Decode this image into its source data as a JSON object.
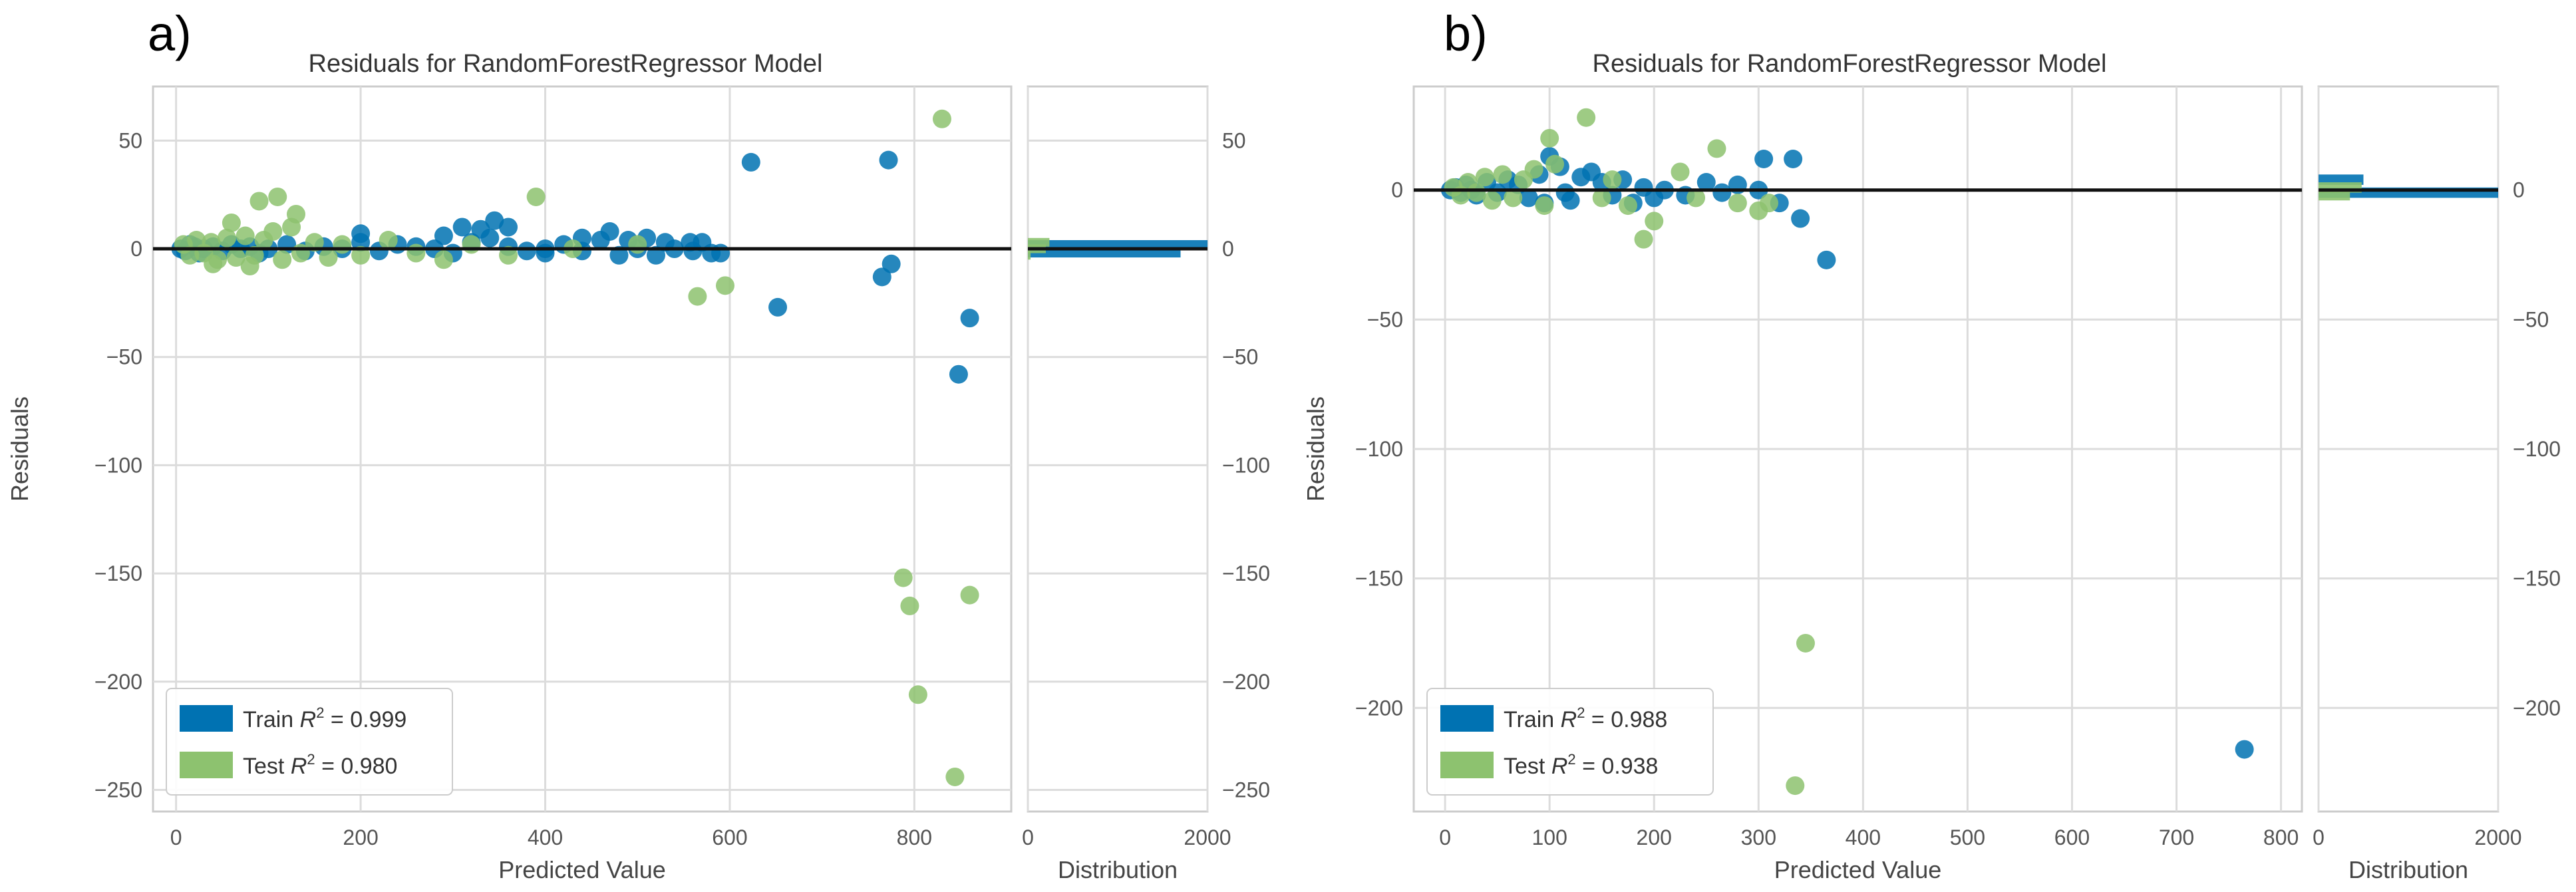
{
  "panels": [
    {
      "label": "a)",
      "chart_data": {
        "type": "scatter",
        "title": "Residuals for RandomForestRegressor Model",
        "xlabel": "Predicted Value",
        "ylabel": "Residuals",
        "xlim": [
          -25,
          905
        ],
        "ylim": [
          -260,
          75
        ],
        "xticks": [
          0,
          200,
          400,
          600,
          800
        ],
        "yticks": [
          50,
          0,
          -50,
          -100,
          -150,
          -200,
          -250
        ],
        "grid": true,
        "legend_position": "lower-left",
        "colors": {
          "train": "#0072b2",
          "test": "#8dc26f"
        },
        "series": [
          {
            "name": "Train R² = 0.999",
            "legend_prefix": "Train",
            "r2": "0.999",
            "color": "#0072b2",
            "points": [
              [
                5,
                0
              ],
              [
                10,
                -1
              ],
              [
                15,
                2
              ],
              [
                20,
                1
              ],
              [
                25,
                -2
              ],
              [
                30,
                0
              ],
              [
                40,
                1
              ],
              [
                50,
                -1
              ],
              [
                60,
                2
              ],
              [
                70,
                0
              ],
              [
                80,
                1
              ],
              [
                90,
                -2
              ],
              [
                100,
                0
              ],
              [
                120,
                2
              ],
              [
                140,
                -1
              ],
              [
                160,
                1
              ],
              [
                180,
                0
              ],
              [
                200,
                3
              ],
              [
                220,
                -1
              ],
              [
                240,
                2
              ],
              [
                260,
                1
              ],
              [
                280,
                0
              ],
              [
                300,
                -2
              ],
              [
                320,
                3
              ],
              [
                340,
                5
              ],
              [
                360,
                1
              ],
              [
                380,
                -1
              ],
              [
                400,
                0
              ],
              [
                420,
                2
              ],
              [
                440,
                -1
              ],
              [
                460,
                4
              ],
              [
                480,
                -3
              ],
              [
                500,
                0
              ],
              [
                510,
                5
              ],
              [
                520,
                -3
              ],
              [
                540,
                0
              ],
              [
                560,
                -1
              ],
              [
                570,
                3
              ],
              [
                580,
                -2
              ],
              [
                200,
                7
              ],
              [
                290,
                6
              ],
              [
                310,
                10
              ],
              [
                345,
                13
              ],
              [
                360,
                10
              ],
              [
                330,
                9
              ],
              [
                400,
                -2
              ],
              [
                440,
                5
              ],
              [
                470,
                8
              ],
              [
                490,
                4
              ],
              [
                530,
                3
              ],
              [
                557,
                3
              ],
              [
                623,
                40
              ],
              [
                652,
                -27
              ],
              [
                772,
                41
              ],
              [
                765,
                -13
              ],
              [
                775,
                -7
              ],
              [
                860,
                -32
              ],
              [
                848,
                -58
              ],
              [
                590,
                -2
              ]
            ]
          },
          {
            "name": "Test R² = 0.980",
            "legend_prefix": "Test",
            "r2": "0.980",
            "color": "#8dc26f",
            "points": [
              [
                8,
                2
              ],
              [
                15,
                -3
              ],
              [
                22,
                4
              ],
              [
                30,
                -2
              ],
              [
                38,
                3
              ],
              [
                45,
                -5
              ],
              [
                55,
                5
              ],
              [
                65,
                -4
              ],
              [
                75,
                6
              ],
              [
                85,
                -3
              ],
              [
                95,
                4
              ],
              [
                105,
                8
              ],
              [
                115,
                -5
              ],
              [
                125,
                10
              ],
              [
                135,
                -2
              ],
              [
                150,
                3
              ],
              [
                165,
                -4
              ],
              [
                180,
                2
              ],
              [
                200,
                -3
              ],
              [
                230,
                4
              ],
              [
                260,
                -2
              ],
              [
                290,
                -5
              ],
              [
                320,
                2
              ],
              [
                360,
                -3
              ],
              [
                390,
                24
              ],
              [
                430,
                0
              ],
              [
                500,
                2
              ],
              [
                565,
                -22
              ],
              [
                595,
                -17
              ],
              [
                90,
                22
              ],
              [
                110,
                24
              ],
              [
                130,
                16
              ],
              [
                60,
                12
              ],
              [
                80,
                -8
              ],
              [
                40,
                -7
              ],
              [
                830,
                60
              ],
              [
                788,
                -152
              ],
              [
                795,
                -165
              ],
              [
                860,
                -160
              ],
              [
                804,
                -206
              ],
              [
                844,
                -244
              ]
            ]
          }
        ]
      },
      "hist_data": {
        "type": "bar",
        "xlabel": "Distribution",
        "xticks": [
          0,
          2000
        ],
        "yticks_right": [
          50,
          0,
          -50,
          -100,
          -150,
          -200,
          -250
        ],
        "ylim": [
          -260,
          75
        ],
        "bars": [
          {
            "series": "Train",
            "color": "#0072b2",
            "y": 2,
            "count": 2000
          },
          {
            "series": "Train",
            "color": "#0072b2",
            "y": -2,
            "count": 1700
          },
          {
            "series": "Test",
            "color": "#8dc26f",
            "y": 3,
            "count": 240
          },
          {
            "series": "Test",
            "color": "#8dc26f",
            "y": 0,
            "count": 200
          },
          {
            "series": "Test",
            "color": "#8dc26f",
            "y": -3,
            "count": 30
          }
        ]
      }
    },
    {
      "label": "b)",
      "chart_data": {
        "type": "scatter",
        "title": "Residuals for RandomForestRegressor Model",
        "xlabel": "Predicted Value",
        "ylabel": "Residuals",
        "xlim": [
          -30,
          820
        ],
        "ylim": [
          -240,
          40
        ],
        "xticks": [
          0,
          100,
          200,
          300,
          400,
          500,
          600,
          700,
          800
        ],
        "yticks": [
          0,
          -50,
          -100,
          -150,
          -200
        ],
        "grid": true,
        "legend_position": "lower-left",
        "colors": {
          "train": "#0072b2",
          "test": "#8dc26f"
        },
        "series": [
          {
            "name": "Train R² = 0.988",
            "legend_prefix": "Train",
            "r2": "0.988",
            "color": "#0072b2",
            "points": [
              [
                5,
                0
              ],
              [
                10,
                1
              ],
              [
                15,
                -1
              ],
              [
                20,
                2
              ],
              [
                25,
                0
              ],
              [
                30,
                -2
              ],
              [
                40,
                3
              ],
              [
                50,
                -1
              ],
              [
                60,
                4
              ],
              [
                70,
                2
              ],
              [
                80,
                -3
              ],
              [
                90,
                6
              ],
              [
                100,
                13
              ],
              [
                110,
                9
              ],
              [
                120,
                -4
              ],
              [
                130,
                5
              ],
              [
                140,
                7
              ],
              [
                150,
                3
              ],
              [
                160,
                -2
              ],
              [
                170,
                4
              ],
              [
                180,
                -5
              ],
              [
                190,
                1
              ],
              [
                200,
                -3
              ],
              [
                210,
                0
              ],
              [
                230,
                -2
              ],
              [
                250,
                3
              ],
              [
                265,
                -1
              ],
              [
                280,
                2
              ],
              [
                300,
                0
              ],
              [
                305,
                12
              ],
              [
                320,
                -5
              ],
              [
                333,
                12
              ],
              [
                340,
                -11
              ],
              [
                365,
                -27
              ],
              [
                765,
                -216
              ],
              [
                95,
                -5
              ],
              [
                115,
                -1
              ]
            ]
          },
          {
            "name": "Test R² = 0.938",
            "legend_prefix": "Test",
            "r2": "0.938",
            "color": "#8dc26f",
            "points": [
              [
                8,
                1
              ],
              [
                15,
                -2
              ],
              [
                22,
                3
              ],
              [
                30,
                -1
              ],
              [
                38,
                5
              ],
              [
                45,
                -4
              ],
              [
                55,
                6
              ],
              [
                65,
                -3
              ],
              [
                75,
                4
              ],
              [
                85,
                8
              ],
              [
                95,
                -6
              ],
              [
                100,
                20
              ],
              [
                105,
                10
              ],
              [
                135,
                28
              ],
              [
                150,
                -3
              ],
              [
                160,
                4
              ],
              [
                175,
                -6
              ],
              [
                190,
                -19
              ],
              [
                200,
                -12
              ],
              [
                225,
                7
              ],
              [
                240,
                -3
              ],
              [
                260,
                16
              ],
              [
                280,
                -5
              ],
              [
                300,
                -8
              ],
              [
                310,
                -5
              ],
              [
                345,
                -175
              ],
              [
                335,
                -230
              ]
            ]
          }
        ]
      },
      "hist_data": {
        "type": "bar",
        "xlabel": "Distribution",
        "xticks": [
          0,
          2000
        ],
        "yticks_right": [
          0,
          -50,
          -100,
          -150,
          -200
        ],
        "ylim": [
          -240,
          40
        ],
        "bars": [
          {
            "series": "Train",
            "color": "#0072b2",
            "y": 4,
            "count": 500
          },
          {
            "series": "Train",
            "color": "#0072b2",
            "y": -1,
            "count": 2000
          },
          {
            "series": "Test",
            "color": "#8dc26f",
            "y": 1,
            "count": 480
          },
          {
            "series": "Test",
            "color": "#8dc26f",
            "y": -2,
            "count": 350
          }
        ]
      }
    }
  ]
}
